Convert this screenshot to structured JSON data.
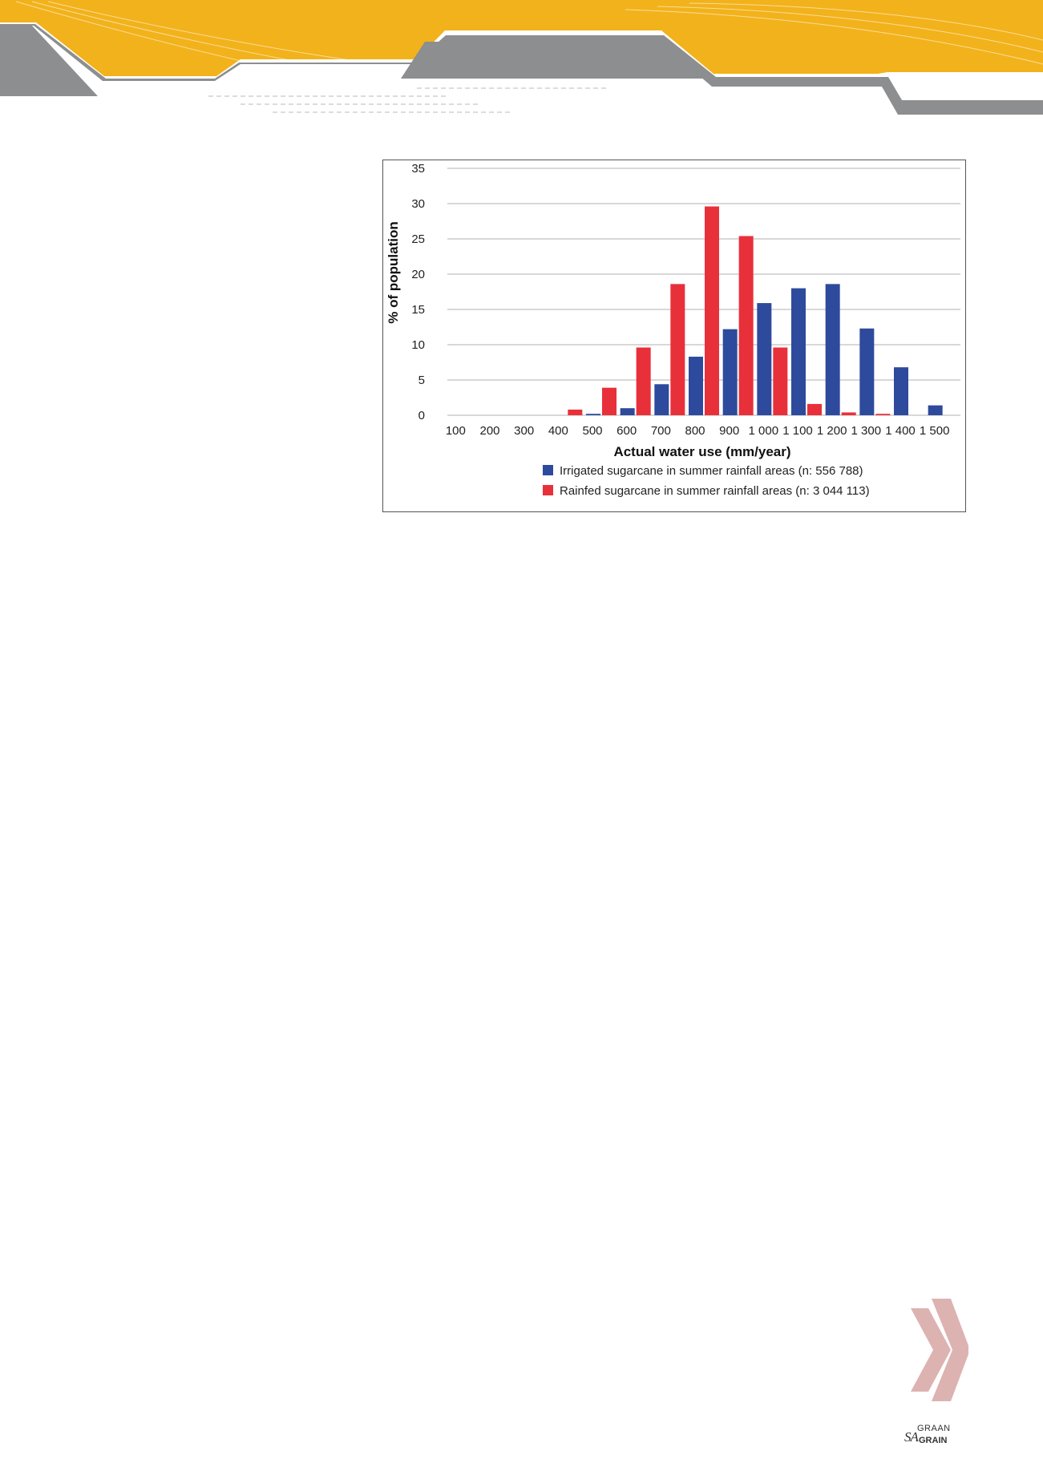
{
  "colors": {
    "header_yellow": "#f2b21b",
    "header_gray": "#8c8e90",
    "irrigated": "#2e4a9c",
    "rainfed": "#e8303b",
    "chevron": "#dcb3b1"
  },
  "icons": {
    "chevron": "double-chevron-right-icon"
  },
  "logo": {
    "top": "GRAAN",
    "sa": "SA",
    "bottom": "GRAIN"
  },
  "chart_data": {
    "type": "bar",
    "title": "",
    "xlabel": "Actual water use (mm/year)",
    "ylabel": "% of population",
    "ylim": [
      0,
      35
    ],
    "yticks": [
      0,
      5,
      10,
      15,
      20,
      25,
      30,
      35
    ],
    "grid": true,
    "legend_position": "bottom",
    "categories": [
      "100",
      "200",
      "300",
      "400",
      "500",
      "600",
      "700",
      "800",
      "900",
      "1 000",
      "1 100",
      "1 200",
      "1 300",
      "1 400",
      "1 500"
    ],
    "series": [
      {
        "name": "Irrigated sugarcane in summer rainfall areas (n: 556 788)",
        "color": "#2e4a9c",
        "values": [
          0,
          0,
          0,
          0,
          0.2,
          1.0,
          4.4,
          8.3,
          12.2,
          15.9,
          18.0,
          18.6,
          12.3,
          6.8,
          1.4
        ]
      },
      {
        "name": "Rainfed sugarcane in summer rainfall areas (n: 3 044 113)",
        "color": "#e8303b",
        "values": [
          0,
          0,
          0,
          0.8,
          3.9,
          9.6,
          18.6,
          29.6,
          25.4,
          9.6,
          1.6,
          0.4,
          0.2,
          0,
          0
        ]
      }
    ]
  }
}
